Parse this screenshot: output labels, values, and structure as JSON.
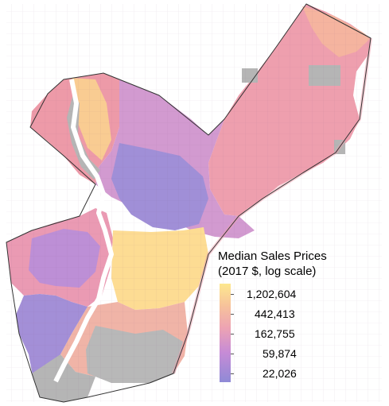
{
  "legend": {
    "title_line1": "Median Sales Prices",
    "title_line2": "(2017 $, log scale)",
    "ticks": [
      "1,202,604",
      "442,413",
      "162,755",
      "59,874",
      "22,026"
    ]
  },
  "colors": {
    "high": "#fde88f",
    "mid_high": "#f7c39a",
    "mid": "#eda3b3",
    "mid_low": "#c68bd6",
    "low": "#8f8ad6",
    "no_data": "#b5b5b5",
    "water": "#ffffff"
  }
}
